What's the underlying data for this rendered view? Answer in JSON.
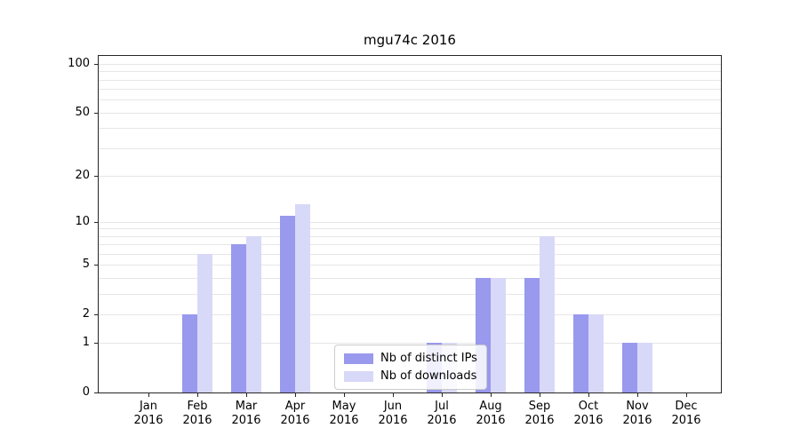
{
  "chart_data": {
    "type": "bar",
    "title": "mgu74c 2016",
    "y_scale": "log1p",
    "ylim": [
      0,
      112
    ],
    "yticks": [
      0,
      1,
      2,
      5,
      10,
      20,
      50,
      100
    ],
    "gridlines": [
      1,
      2,
      3,
      4,
      5,
      6,
      7,
      8,
      9,
      10,
      20,
      30,
      40,
      50,
      60,
      70,
      80,
      90,
      100
    ],
    "categories": [
      "Jan",
      "Feb",
      "Mar",
      "Apr",
      "May",
      "Jun",
      "Jul",
      "Aug",
      "Sep",
      "Oct",
      "Nov",
      "Dec"
    ],
    "category_year": "2016",
    "series": [
      {
        "name": "Nb of distinct IPs",
        "color": "#9999ee",
        "values": [
          0,
          2,
          7,
          11,
          0,
          0,
          1,
          4,
          4,
          2,
          1,
          0
        ]
      },
      {
        "name": "Nb of downloads",
        "color": "#d8d8f8",
        "values": [
          0,
          6,
          8,
          13,
          0,
          0,
          1,
          4,
          8,
          2,
          1,
          0
        ]
      }
    ],
    "legend": {
      "position": "lower center",
      "labels": [
        "Nb of distinct IPs",
        "Nb of downloads"
      ]
    },
    "grid": "on",
    "background": "#ffffff"
  }
}
